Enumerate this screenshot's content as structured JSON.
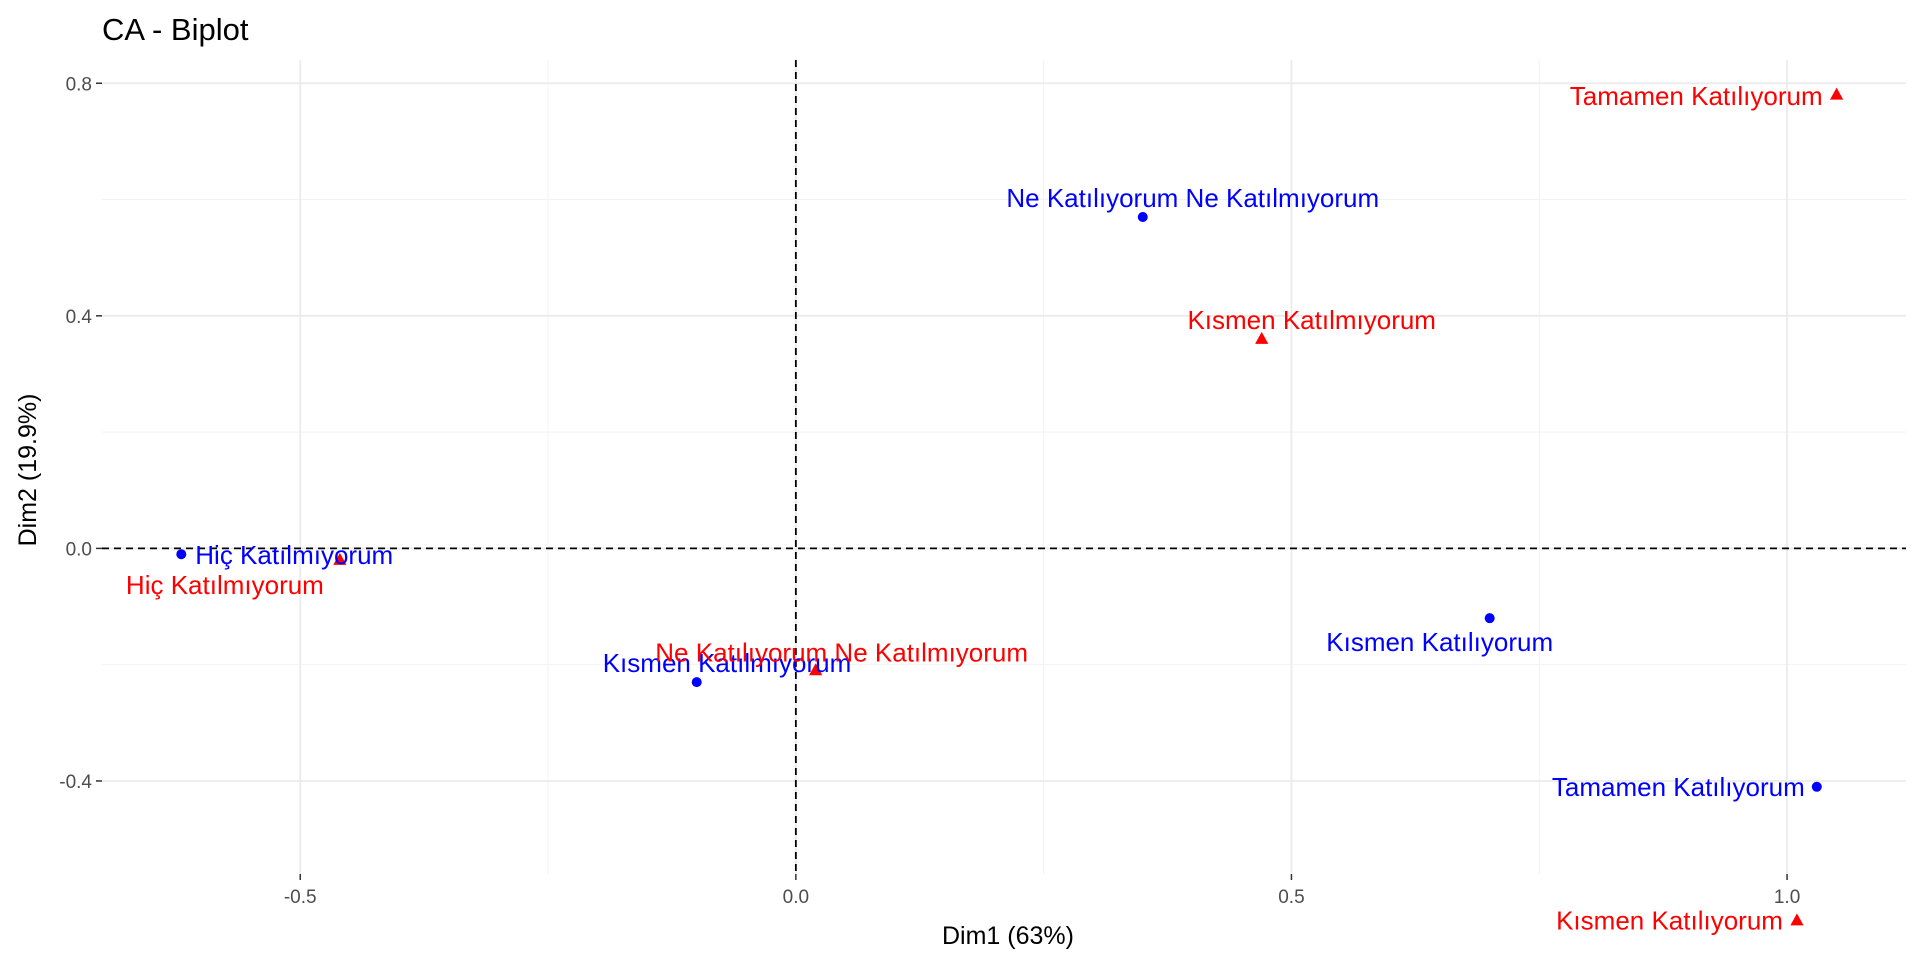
{
  "chart_data": {
    "type": "scatter",
    "title": "CA - Biplot",
    "xlabel": "Dim1 (63%)",
    "ylabel": "Dim2 (19.9%)",
    "xlim": [
      -0.7,
      1.12
    ],
    "ylim": [
      -0.56,
      0.84
    ],
    "x_ticks": [
      -0.5,
      0.0,
      0.5,
      1.0
    ],
    "x_tick_labels": [
      "-0.5",
      "0.0",
      "0.5",
      "1.0"
    ],
    "y_ticks": [
      -0.4,
      0.0,
      0.4,
      0.8
    ],
    "y_tick_labels": [
      "-0.4",
      "0.0",
      "0.4",
      "0.8"
    ],
    "grid": true,
    "reference_lines": {
      "x": 0,
      "y": 0,
      "style": "dashed"
    },
    "series": [
      {
        "color": "#0000ff",
        "marker": "circle",
        "points": [
          {
            "label": "Hiç Katılmıyorum",
            "x": -0.62,
            "y": -0.01
          },
          {
            "label": "Kısmen Katılmıyorum",
            "x": -0.1,
            "y": -0.23
          },
          {
            "label": "Ne Katılıyorum Ne Katılmıyorum",
            "x": 0.35,
            "y": 0.57
          },
          {
            "label": "Kısmen Katılıyorum",
            "x": 0.7,
            "y": -0.12
          },
          {
            "label": "Tamamen Katılıyorum",
            "x": 1.03,
            "y": -0.41
          }
        ]
      },
      {
        "color": "#ff0000",
        "marker": "triangle",
        "points": [
          {
            "label": "Hiç Katılmıyorum",
            "x": -0.46,
            "y": -0.02
          },
          {
            "label": "Kısmen Katılmıyorum",
            "x": 0.47,
            "y": 0.36
          },
          {
            "label": "Ne Katılıyorum Ne Katılmıyorum",
            "x": 0.02,
            "y": -0.21
          },
          {
            "label": "Kısmen Katılıyorum",
            "x": 1.01,
            "y": -0.64
          },
          {
            "label": "Tamamen Katılıyorum",
            "x": 1.05,
            "y": 0.78
          }
        ]
      }
    ]
  }
}
